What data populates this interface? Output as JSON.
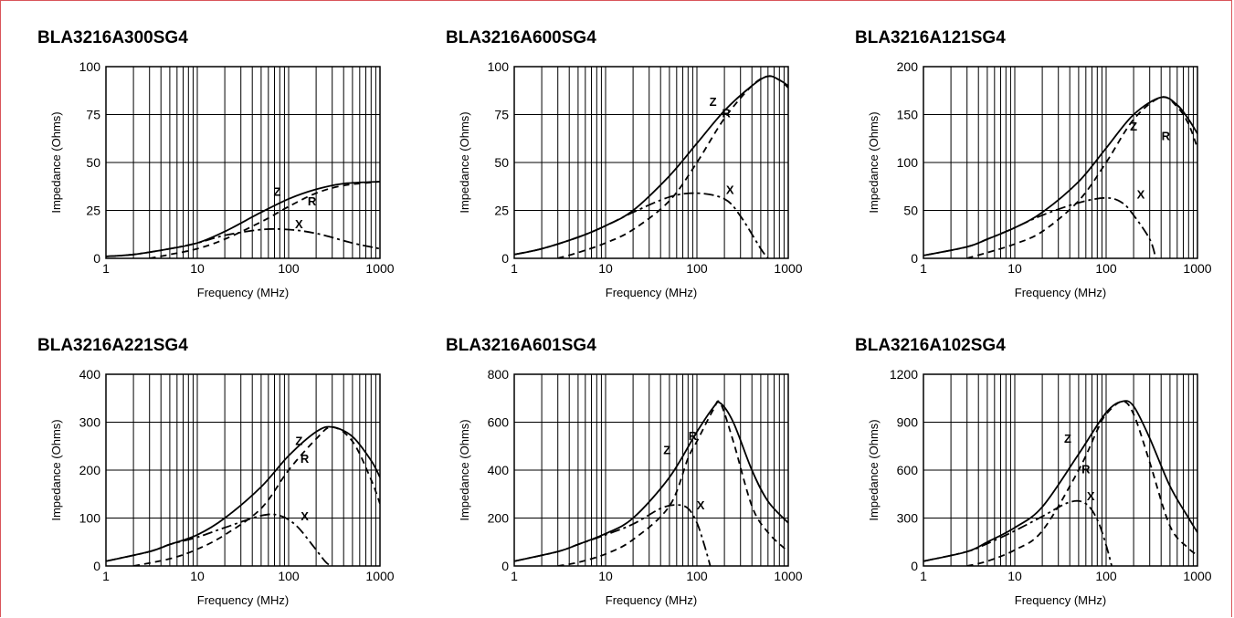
{
  "page": {
    "border_color": "#d9545a"
  },
  "chart_data": [
    {
      "type": "line",
      "title": "BLA3216A300SG4",
      "xlabel": "Frequency (MHz)",
      "ylabel": "Impedance (Ohms)",
      "x_scale": "log",
      "xlim": [
        1,
        1000
      ],
      "ylim": [
        0,
        100
      ],
      "x_ticks": [
        "1",
        "10",
        "100",
        "1000"
      ],
      "y_ticks": [
        "0",
        "25",
        "50",
        "75",
        "100"
      ],
      "grid": true,
      "series": [
        {
          "name": "Z",
          "style": "solid",
          "points": [
            [
              1,
              1
            ],
            [
              2,
              2
            ],
            [
              5,
              5
            ],
            [
              10,
              8
            ],
            [
              20,
              14
            ],
            [
              50,
              24
            ],
            [
              100,
              31
            ],
            [
              200,
              36
            ],
            [
              400,
              39
            ],
            [
              1000,
              40
            ]
          ],
          "label_at": [
            75,
            35
          ]
        },
        {
          "name": "R",
          "style": "dashed",
          "points": [
            [
              3,
              0
            ],
            [
              5,
              2
            ],
            [
              10,
              5
            ],
            [
              20,
              10
            ],
            [
              50,
              19
            ],
            [
              100,
              27
            ],
            [
              200,
              34
            ],
            [
              400,
              38
            ],
            [
              1000,
              40
            ]
          ],
          "label_at": [
            180,
            30
          ]
        },
        {
          "name": "X",
          "style": "dashdot",
          "points": [
            [
              1,
              1
            ],
            [
              2,
              2
            ],
            [
              5,
              5
            ],
            [
              10,
              8
            ],
            [
              20,
              12
            ],
            [
              50,
              15
            ],
            [
              100,
              15
            ],
            [
              200,
              13
            ],
            [
              500,
              8
            ],
            [
              1000,
              5
            ]
          ],
          "label_at": [
            130,
            18
          ]
        }
      ]
    },
    {
      "type": "line",
      "title": "BLA3216A600SG4",
      "xlabel": "Frequency (MHz)",
      "ylabel": "Impedance (Ohms)",
      "x_scale": "log",
      "xlim": [
        1,
        1000
      ],
      "ylim": [
        0,
        100
      ],
      "x_ticks": [
        "1",
        "10",
        "100",
        "1000"
      ],
      "y_ticks": [
        "0",
        "25",
        "50",
        "75",
        "100"
      ],
      "grid": true,
      "series": [
        {
          "name": "Z",
          "style": "solid",
          "points": [
            [
              1,
              2
            ],
            [
              2,
              5
            ],
            [
              5,
              11
            ],
            [
              10,
              17
            ],
            [
              20,
              25
            ],
            [
              50,
              43
            ],
            [
              100,
              60
            ],
            [
              200,
              77
            ],
            [
              400,
              90
            ],
            [
              600,
              95
            ],
            [
              800,
              93
            ],
            [
              1000,
              90
            ]
          ],
          "label_at": [
            150,
            82
          ]
        },
        {
          "name": "R",
          "style": "dashed",
          "points": [
            [
              3,
              0
            ],
            [
              5,
              3
            ],
            [
              10,
              8
            ],
            [
              20,
              15
            ],
            [
              50,
              30
            ],
            [
              100,
              50
            ],
            [
              200,
              73
            ],
            [
              400,
              90
            ],
            [
              600,
              95
            ],
            [
              800,
              93
            ],
            [
              1000,
              89
            ]
          ],
          "label_at": [
            210,
            76
          ]
        },
        {
          "name": "X",
          "style": "dashdot",
          "points": [
            [
              1,
              2
            ],
            [
              2,
              5
            ],
            [
              5,
              11
            ],
            [
              10,
              17
            ],
            [
              20,
              24
            ],
            [
              50,
              32
            ],
            [
              100,
              34
            ],
            [
              200,
              31
            ],
            [
              300,
              22
            ],
            [
              500,
              5
            ],
            [
              600,
              0
            ]
          ],
          "label_at": [
            230,
            36
          ]
        }
      ]
    },
    {
      "type": "line",
      "title": "BLA3216A121SG4",
      "xlabel": "Frequency (MHz)",
      "ylabel": "Impedance (Ohms)",
      "x_scale": "log",
      "xlim": [
        1,
        1000
      ],
      "ylim": [
        0,
        200
      ],
      "x_ticks": [
        "1",
        "10",
        "100",
        "1000"
      ],
      "y_ticks": [
        "0",
        "50",
        "100",
        "150",
        "200"
      ],
      "grid": true,
      "series": [
        {
          "name": "Z",
          "style": "solid",
          "points": [
            [
              1,
              3
            ],
            [
              3,
              12
            ],
            [
              5,
              20
            ],
            [
              10,
              32
            ],
            [
              20,
              48
            ],
            [
              50,
              80
            ],
            [
              100,
              115
            ],
            [
              200,
              150
            ],
            [
              400,
              168
            ],
            [
              600,
              160
            ],
            [
              800,
              145
            ],
            [
              1000,
              130
            ]
          ],
          "label_at": [
            200,
            138
          ]
        },
        {
          "name": "R",
          "style": "dashed",
          "points": [
            [
              3,
              0
            ],
            [
              5,
              6
            ],
            [
              10,
              15
            ],
            [
              20,
              28
            ],
            [
              50,
              60
            ],
            [
              100,
              100
            ],
            [
              200,
              145
            ],
            [
              400,
              168
            ],
            [
              600,
              158
            ],
            [
              800,
              140
            ],
            [
              1000,
              115
            ]
          ],
          "label_at": [
            450,
            128
          ]
        },
        {
          "name": "X",
          "style": "dashdot",
          "points": [
            [
              1,
              3
            ],
            [
              3,
              12
            ],
            [
              5,
              20
            ],
            [
              10,
              32
            ],
            [
              20,
              45
            ],
            [
              50,
              58
            ],
            [
              100,
              63
            ],
            [
              150,
              58
            ],
            [
              200,
              45
            ],
            [
              300,
              20
            ],
            [
              350,
              0
            ]
          ],
          "label_at": [
            240,
            67
          ]
        }
      ]
    },
    {
      "type": "line",
      "title": "BLA3216A221SG4",
      "xlabel": "Frequency (MHz)",
      "ylabel": "Impedance (Ohms)",
      "x_scale": "log",
      "xlim": [
        1,
        1000
      ],
      "ylim": [
        0,
        400
      ],
      "x_ticks": [
        "1",
        "10",
        "100",
        "1000"
      ],
      "y_ticks": [
        "0",
        "100",
        "200",
        "300",
        "400"
      ],
      "grid": true,
      "series": [
        {
          "name": "Z",
          "style": "solid",
          "points": [
            [
              1,
              10
            ],
            [
              3,
              30
            ],
            [
              5,
              45
            ],
            [
              10,
              65
            ],
            [
              20,
              100
            ],
            [
              50,
              165
            ],
            [
              100,
              230
            ],
            [
              200,
              280
            ],
            [
              300,
              290
            ],
            [
              500,
              270
            ],
            [
              800,
              220
            ],
            [
              1000,
              185
            ]
          ],
          "label_at": [
            130,
            262
          ]
        },
        {
          "name": "R",
          "style": "dashed",
          "points": [
            [
              2,
              0
            ],
            [
              5,
              15
            ],
            [
              10,
              35
            ],
            [
              20,
              65
            ],
            [
              50,
              120
            ],
            [
              100,
              200
            ],
            [
              200,
              265
            ],
            [
              300,
              290
            ],
            [
              500,
              260
            ],
            [
              800,
              180
            ],
            [
              1000,
              130
            ]
          ],
          "label_at": [
            150,
            225
          ]
        },
        {
          "name": "X",
          "style": "dashdot",
          "points": [
            [
              1,
              10
            ],
            [
              3,
              30
            ],
            [
              5,
              45
            ],
            [
              10,
              60
            ],
            [
              20,
              80
            ],
            [
              50,
              105
            ],
            [
              80,
              105
            ],
            [
              120,
              85
            ],
            [
              180,
              45
            ],
            [
              250,
              10
            ],
            [
              290,
              0
            ]
          ],
          "label_at": [
            150,
            105
          ]
        }
      ]
    },
    {
      "type": "line",
      "title": "BLA3216A601SG4",
      "xlabel": "Frequency (MHz)",
      "ylabel": "Impedance (Ohms)",
      "x_scale": "log",
      "xlim": [
        1,
        1000
      ],
      "ylim": [
        0,
        800
      ],
      "x_ticks": [
        "1",
        "10",
        "100",
        "1000"
      ],
      "y_ticks": [
        "0",
        "200",
        "400",
        "600",
        "800"
      ],
      "grid": true,
      "series": [
        {
          "name": "Z",
          "style": "solid",
          "points": [
            [
              1,
              20
            ],
            [
              3,
              60
            ],
            [
              5,
              90
            ],
            [
              10,
              135
            ],
            [
              20,
              200
            ],
            [
              50,
              370
            ],
            [
              100,
              560
            ],
            [
              150,
              660
            ],
            [
              180,
              680
            ],
            [
              250,
              600
            ],
            [
              400,
              400
            ],
            [
              600,
              270
            ],
            [
              1000,
              180
            ]
          ],
          "label_at": [
            47,
            485
          ]
        },
        {
          "name": "R",
          "style": "dashed",
          "points": [
            [
              3,
              0
            ],
            [
              5,
              15
            ],
            [
              10,
              50
            ],
            [
              20,
              110
            ],
            [
              50,
              250
            ],
            [
              80,
              450
            ],
            [
              100,
              520
            ],
            [
              150,
              650
            ],
            [
              180,
              680
            ],
            [
              250,
              520
            ],
            [
              400,
              250
            ],
            [
              600,
              140
            ],
            [
              1000,
              60
            ]
          ],
          "label_at": [
            90,
            545
          ]
        },
        {
          "name": "X",
          "style": "dashdot",
          "points": [
            [
              1,
              20
            ],
            [
              3,
              60
            ],
            [
              5,
              90
            ],
            [
              10,
              130
            ],
            [
              20,
              175
            ],
            [
              40,
              240
            ],
            [
              60,
              255
            ],
            [
              80,
              240
            ],
            [
              100,
              180
            ],
            [
              120,
              90
            ],
            [
              140,
              0
            ]
          ],
          "label_at": [
            110,
            255
          ]
        }
      ]
    },
    {
      "type": "line",
      "title": "BLA3216A102SG4",
      "xlabel": "Frequency (MHz)",
      "ylabel": "Impedance (Ohms)",
      "x_scale": "log",
      "xlim": [
        1,
        1000
      ],
      "ylim": [
        0,
        1200
      ],
      "x_ticks": [
        "1",
        "10",
        "100",
        "1000"
      ],
      "y_ticks": [
        "0",
        "300",
        "600",
        "900",
        "1200"
      ],
      "grid": true,
      "series": [
        {
          "name": "Z",
          "style": "solid",
          "points": [
            [
              1,
              30
            ],
            [
              3,
              90
            ],
            [
              5,
              150
            ],
            [
              10,
              240
            ],
            [
              20,
              370
            ],
            [
              50,
              700
            ],
            [
              100,
              960
            ],
            [
              150,
              1030
            ],
            [
              200,
              1000
            ],
            [
              300,
              800
            ],
            [
              500,
              500
            ],
            [
              800,
              300
            ],
            [
              1000,
              210
            ]
          ],
          "label_at": [
            38,
            800
          ]
        },
        {
          "name": "R",
          "style": "dashed",
          "points": [
            [
              3,
              0
            ],
            [
              5,
              30
            ],
            [
              10,
              100
            ],
            [
              20,
              220
            ],
            [
              50,
              600
            ],
            [
              80,
              850
            ],
            [
              100,
              950
            ],
            [
              150,
              1030
            ],
            [
              200,
              950
            ],
            [
              300,
              650
            ],
            [
              500,
              250
            ],
            [
              800,
              110
            ],
            [
              1000,
              70
            ]
          ],
          "label_at": [
            60,
            610
          ]
        },
        {
          "name": "X",
          "style": "dashdot",
          "points": [
            [
              1,
              30
            ],
            [
              3,
              90
            ],
            [
              5,
              140
            ],
            [
              10,
              220
            ],
            [
              20,
              310
            ],
            [
              40,
              400
            ],
            [
              60,
              390
            ],
            [
              80,
              290
            ],
            [
              100,
              130
            ],
            [
              115,
              0
            ]
          ],
          "label_at": [
            68,
            440
          ]
        }
      ]
    }
  ]
}
